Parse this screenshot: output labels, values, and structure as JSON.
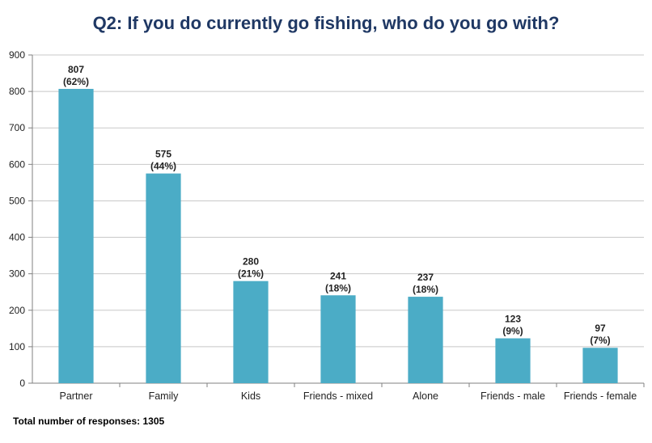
{
  "title": "Q2:  If you do currently go fishing, who do you go with?",
  "footnote": "Total number of responses: 1305",
  "colors": {
    "bar": "#4bacc6",
    "title": "#1f3864",
    "grid": "#c8c8c8"
  },
  "chart_data": {
    "type": "bar",
    "title": "Q2:  If you do currently go fishing, who do you go with?",
    "xlabel": "",
    "ylabel": "",
    "ylim": [
      0,
      900
    ],
    "yticks": [
      0,
      100,
      200,
      300,
      400,
      500,
      600,
      700,
      800,
      900
    ],
    "grid": true,
    "categories": [
      "Partner",
      "Family",
      "Kids",
      "Friends - mixed",
      "Alone",
      "Friends - male",
      "Friends - female"
    ],
    "values": [
      807,
      575,
      280,
      241,
      237,
      123,
      97
    ],
    "percent_labels": [
      "(62%)",
      "(44%)",
      "(21%)",
      "(18%)",
      "(18%)",
      "(9%)",
      "(7%)"
    ]
  }
}
